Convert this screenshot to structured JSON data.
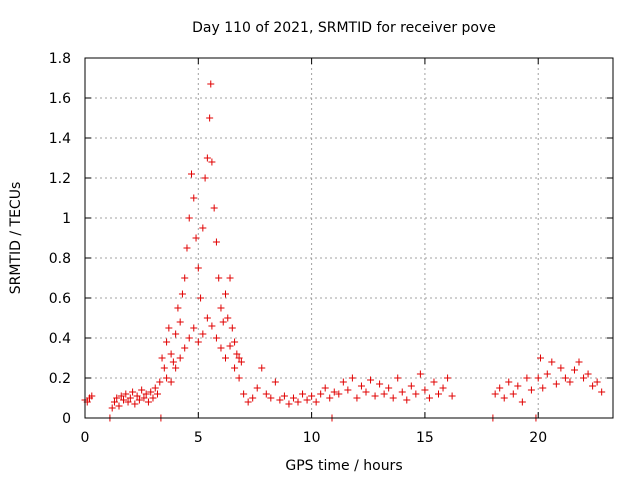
{
  "chart_data": {
    "type": "scatter",
    "title": "Day 110 of 2021, SRMTID for receiver pove",
    "xlabel": "GPS time / hours",
    "ylabel": "SRMTID / TECUs",
    "xlim": [
      0,
      23.3
    ],
    "ylim": [
      0,
      1.8
    ],
    "xticks": [
      0,
      5,
      10,
      15,
      20
    ],
    "yticks": [
      0,
      0.2,
      0.4,
      0.6,
      0.8,
      1,
      1.2,
      1.4,
      1.6,
      1.8
    ],
    "ytick_labels": [
      "0",
      "0.2",
      "0.4",
      "0.6",
      "0.8",
      "1",
      "1.2",
      "1.4",
      "1.6",
      "1.8"
    ],
    "grid": true,
    "marker": "+",
    "color": "#e00000",
    "series": [
      {
        "name": "SRMTID",
        "points": [
          [
            0.0,
            0.09
          ],
          [
            0.1,
            0.08
          ],
          [
            0.2,
            0.1
          ],
          [
            0.3,
            0.11
          ],
          [
            1.1,
            0.0
          ],
          [
            1.2,
            0.05
          ],
          [
            1.3,
            0.08
          ],
          [
            1.4,
            0.1
          ],
          [
            1.5,
            0.06
          ],
          [
            1.6,
            0.11
          ],
          [
            1.7,
            0.09
          ],
          [
            1.8,
            0.12
          ],
          [
            1.9,
            0.08
          ],
          [
            2.0,
            0.1
          ],
          [
            2.1,
            0.13
          ],
          [
            2.2,
            0.07
          ],
          [
            2.3,
            0.11
          ],
          [
            2.4,
            0.09
          ],
          [
            2.5,
            0.14
          ],
          [
            2.6,
            0.1
          ],
          [
            2.7,
            0.12
          ],
          [
            2.8,
            0.08
          ],
          [
            2.9,
            0.13
          ],
          [
            3.0,
            0.1
          ],
          [
            3.1,
            0.15
          ],
          [
            3.2,
            0.12
          ],
          [
            3.3,
            0.18
          ],
          [
            3.35,
            0.0
          ],
          [
            3.4,
            0.3
          ],
          [
            3.5,
            0.25
          ],
          [
            3.6,
            0.38
          ],
          [
            3.7,
            0.45
          ],
          [
            3.8,
            0.32
          ],
          [
            3.9,
            0.28
          ],
          [
            4.0,
            0.42
          ],
          [
            4.1,
            0.55
          ],
          [
            4.2,
            0.48
          ],
          [
            4.3,
            0.62
          ],
          [
            4.4,
            0.7
          ],
          [
            4.5,
            0.85
          ],
          [
            4.6,
            1.0
          ],
          [
            4.7,
            1.22
          ],
          [
            4.8,
            1.1
          ],
          [
            4.9,
            0.9
          ],
          [
            5.0,
            0.75
          ],
          [
            5.1,
            0.6
          ],
          [
            5.2,
            0.95
          ],
          [
            5.3,
            1.2
          ],
          [
            5.4,
            1.3
          ],
          [
            5.5,
            1.5
          ],
          [
            5.55,
            1.67
          ],
          [
            5.6,
            1.28
          ],
          [
            5.7,
            1.05
          ],
          [
            5.8,
            0.88
          ],
          [
            5.9,
            0.7
          ],
          [
            6.0,
            0.55
          ],
          [
            6.1,
            0.48
          ],
          [
            6.2,
            0.62
          ],
          [
            6.3,
            0.5
          ],
          [
            6.4,
            0.7
          ],
          [
            6.5,
            0.45
          ],
          [
            6.6,
            0.38
          ],
          [
            6.7,
            0.32
          ],
          [
            6.8,
            0.3
          ],
          [
            6.9,
            0.28
          ],
          [
            3.6,
            0.2
          ],
          [
            3.8,
            0.18
          ],
          [
            4.0,
            0.25
          ],
          [
            4.2,
            0.3
          ],
          [
            4.4,
            0.35
          ],
          [
            4.6,
            0.4
          ],
          [
            4.8,
            0.45
          ],
          [
            5.0,
            0.38
          ],
          [
            5.2,
            0.42
          ],
          [
            5.4,
            0.5
          ],
          [
            5.6,
            0.46
          ],
          [
            5.8,
            0.4
          ],
          [
            6.0,
            0.35
          ],
          [
            6.2,
            0.3
          ],
          [
            6.4,
            0.36
          ],
          [
            6.6,
            0.25
          ],
          [
            6.8,
            0.2
          ],
          [
            7.0,
            0.12
          ],
          [
            7.2,
            0.08
          ],
          [
            7.4,
            0.1
          ],
          [
            7.6,
            0.15
          ],
          [
            7.8,
            0.25
          ],
          [
            8.0,
            0.12
          ],
          [
            8.2,
            0.1
          ],
          [
            8.4,
            0.18
          ],
          [
            8.6,
            0.09
          ],
          [
            8.8,
            0.11
          ],
          [
            9.0,
            0.07
          ],
          [
            9.2,
            0.1
          ],
          [
            9.4,
            0.08
          ],
          [
            9.6,
            0.12
          ],
          [
            9.8,
            0.09
          ],
          [
            10.0,
            0.11
          ],
          [
            10.2,
            0.08
          ],
          [
            10.4,
            0.12
          ],
          [
            10.6,
            0.15
          ],
          [
            10.8,
            0.1
          ],
          [
            11.0,
            0.13
          ],
          [
            10.9,
            0.0
          ],
          [
            11.2,
            0.12
          ],
          [
            11.4,
            0.18
          ],
          [
            11.6,
            0.14
          ],
          [
            11.8,
            0.2
          ],
          [
            12.0,
            0.1
          ],
          [
            12.2,
            0.16
          ],
          [
            12.4,
            0.13
          ],
          [
            12.6,
            0.19
          ],
          [
            12.8,
            0.11
          ],
          [
            13.0,
            0.17
          ],
          [
            13.2,
            0.12
          ],
          [
            13.4,
            0.15
          ],
          [
            13.6,
            0.1
          ],
          [
            13.8,
            0.2
          ],
          [
            14.0,
            0.13
          ],
          [
            14.2,
            0.09
          ],
          [
            14.4,
            0.16
          ],
          [
            14.6,
            0.12
          ],
          [
            14.8,
            0.22
          ],
          [
            15.0,
            0.14
          ],
          [
            15.2,
            0.1
          ],
          [
            15.4,
            0.18
          ],
          [
            15.6,
            0.12
          ],
          [
            15.8,
            0.15
          ],
          [
            16.0,
            0.2
          ],
          [
            16.2,
            0.11
          ],
          [
            18.0,
            0.0
          ],
          [
            18.1,
            0.12
          ],
          [
            18.3,
            0.15
          ],
          [
            18.5,
            0.1
          ],
          [
            18.7,
            0.18
          ],
          [
            18.9,
            0.12
          ],
          [
            19.1,
            0.16
          ],
          [
            19.3,
            0.08
          ],
          [
            19.5,
            0.2
          ],
          [
            19.7,
            0.14
          ],
          [
            19.9,
            0.0
          ],
          [
            20.0,
            0.2
          ],
          [
            20.1,
            0.3
          ],
          [
            20.2,
            0.15
          ],
          [
            20.4,
            0.22
          ],
          [
            20.6,
            0.28
          ],
          [
            20.8,
            0.17
          ],
          [
            21.0,
            0.25
          ],
          [
            21.2,
            0.2
          ],
          [
            21.4,
            0.18
          ],
          [
            21.6,
            0.24
          ],
          [
            21.8,
            0.28
          ],
          [
            22.0,
            0.2
          ],
          [
            22.2,
            0.22
          ],
          [
            22.4,
            0.16
          ],
          [
            22.6,
            0.18
          ],
          [
            22.8,
            0.13
          ]
        ]
      }
    ]
  }
}
